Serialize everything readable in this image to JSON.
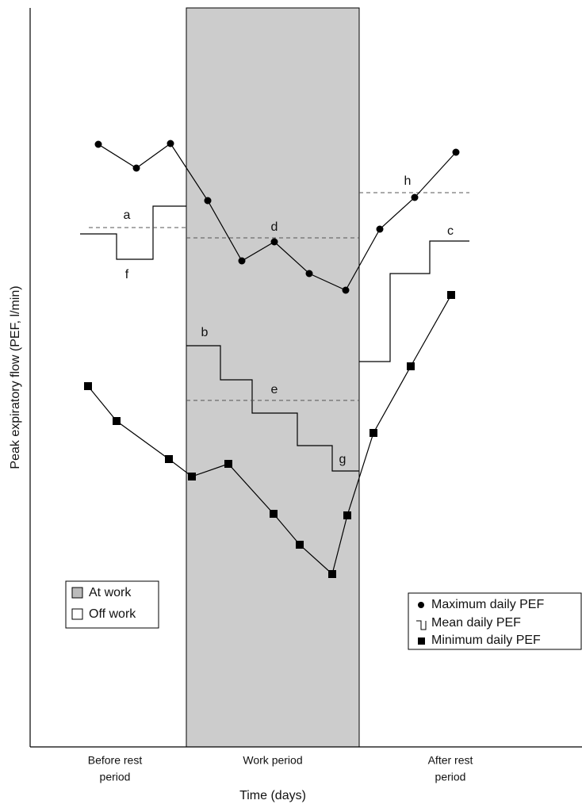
{
  "y_axis_label": "Peak expiratory flow (PEF, l/min)",
  "x_axis_label": "Time (days)",
  "periods": [
    [
      "Before rest",
      "period"
    ],
    [
      "Work period"
    ],
    [
      "After rest",
      "period"
    ]
  ],
  "annotations": [
    "a",
    "f",
    "d",
    "b",
    "e",
    "g",
    "c",
    "h"
  ],
  "location_legend": [
    "At work",
    "Off work"
  ],
  "series_legend": [
    "Maximum daily PEF",
    "Mean daily PEF",
    "Minimum daily PEF"
  ]
}
